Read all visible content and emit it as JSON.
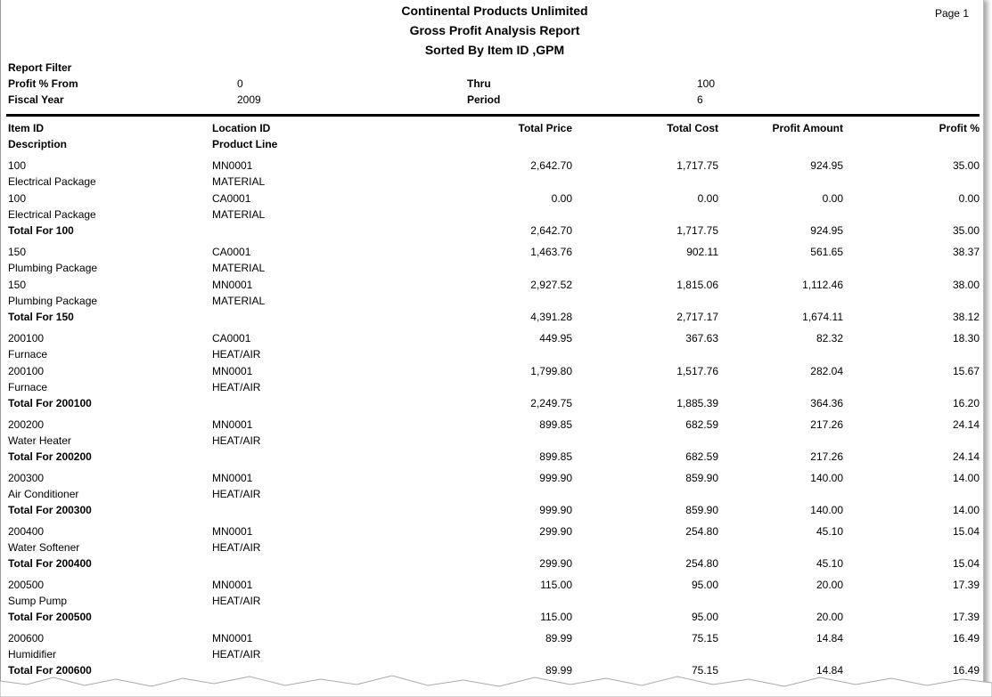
{
  "header": {
    "company": "Continental Products Unlimited",
    "title": "Gross Profit Analysis Report",
    "subtitle": "Sorted By Item ID ,GPM",
    "page": "Page 1"
  },
  "filter": {
    "label": "Report Filter",
    "rows": [
      [
        "Profit % From",
        "0",
        "Thru",
        "100"
      ],
      [
        "Fiscal Year",
        "2009",
        "Period",
        "6"
      ]
    ]
  },
  "columns": {
    "item": "Item ID",
    "location": "Location ID",
    "price": "Total Price",
    "cost": "Total Cost",
    "amount": "Profit Amount",
    "pct": "Profit %",
    "description": "Description",
    "product_line": "Product Line"
  },
  "groups": [
    {
      "lines": [
        {
          "item": "100",
          "location": "MN0001",
          "price": "2,642.70",
          "cost": "1,717.75",
          "amount": "924.95",
          "pct": "35.00",
          "description": "Electrical Package",
          "product_line": "MATERIAL"
        },
        {
          "item": "100",
          "location": "CA0001",
          "price": "0.00",
          "cost": "0.00",
          "amount": "0.00",
          "pct": "0.00",
          "description": "Electrical Package",
          "product_line": "MATERIAL"
        }
      ],
      "total": {
        "label": "Total For 100",
        "price": "2,642.70",
        "cost": "1,717.75",
        "amount": "924.95",
        "pct": "35.00"
      }
    },
    {
      "lines": [
        {
          "item": "150",
          "location": "CA0001",
          "price": "1,463.76",
          "cost": "902.11",
          "amount": "561.65",
          "pct": "38.37",
          "description": "Plumbing Package",
          "product_line": "MATERIAL"
        },
        {
          "item": "150",
          "location": "MN0001",
          "price": "2,927.52",
          "cost": "1,815.06",
          "amount": "1,112.46",
          "pct": "38.00",
          "description": "Plumbing Package",
          "product_line": "MATERIAL"
        }
      ],
      "total": {
        "label": "Total For 150",
        "price": "4,391.28",
        "cost": "2,717.17",
        "amount": "1,674.11",
        "pct": "38.12"
      }
    },
    {
      "lines": [
        {
          "item": "200100",
          "location": "CA0001",
          "price": "449.95",
          "cost": "367.63",
          "amount": "82.32",
          "pct": "18.30",
          "description": "Furnace",
          "product_line": "HEAT/AIR"
        },
        {
          "item": "200100",
          "location": "MN0001",
          "price": "1,799.80",
          "cost": "1,517.76",
          "amount": "282.04",
          "pct": "15.67",
          "description": "Furnace",
          "product_line": "HEAT/AIR"
        }
      ],
      "total": {
        "label": "Total For 200100",
        "price": "2,249.75",
        "cost": "1,885.39",
        "amount": "364.36",
        "pct": "16.20"
      }
    },
    {
      "lines": [
        {
          "item": "200200",
          "location": "MN0001",
          "price": "899.85",
          "cost": "682.59",
          "amount": "217.26",
          "pct": "24.14",
          "description": "Water Heater",
          "product_line": "HEAT/AIR"
        }
      ],
      "total": {
        "label": "Total For 200200",
        "price": "899.85",
        "cost": "682.59",
        "amount": "217.26",
        "pct": "24.14"
      }
    },
    {
      "lines": [
        {
          "item": "200300",
          "location": "MN0001",
          "price": "999.90",
          "cost": "859.90",
          "amount": "140.00",
          "pct": "14.00",
          "description": "Air Conditioner",
          "product_line": "HEAT/AIR"
        }
      ],
      "total": {
        "label": "Total For 200300",
        "price": "999.90",
        "cost": "859.90",
        "amount": "140.00",
        "pct": "14.00"
      }
    },
    {
      "lines": [
        {
          "item": "200400",
          "location": "MN0001",
          "price": "299.90",
          "cost": "254.80",
          "amount": "45.10",
          "pct": "15.04",
          "description": "Water Softener",
          "product_line": "HEAT/AIR"
        }
      ],
      "total": {
        "label": "Total For 200400",
        "price": "299.90",
        "cost": "254.80",
        "amount": "45.10",
        "pct": "15.04"
      }
    },
    {
      "lines": [
        {
          "item": "200500",
          "location": "MN0001",
          "price": "115.00",
          "cost": "95.00",
          "amount": "20.00",
          "pct": "17.39",
          "description": "Sump Pump",
          "product_line": "HEAT/AIR"
        }
      ],
      "total": {
        "label": "Total For 200500",
        "price": "115.00",
        "cost": "95.00",
        "amount": "20.00",
        "pct": "17.39"
      }
    },
    {
      "lines": [
        {
          "item": "200600",
          "location": "MN0001",
          "price": "89.99",
          "cost": "75.15",
          "amount": "14.84",
          "pct": "16.49",
          "description": "Humidifier",
          "product_line": "HEAT/AIR"
        }
      ],
      "total": {
        "label": "Total For 200600",
        "price": "89.99",
        "cost": "75.15",
        "amount": "14.84",
        "pct": "16.49"
      }
    }
  ]
}
